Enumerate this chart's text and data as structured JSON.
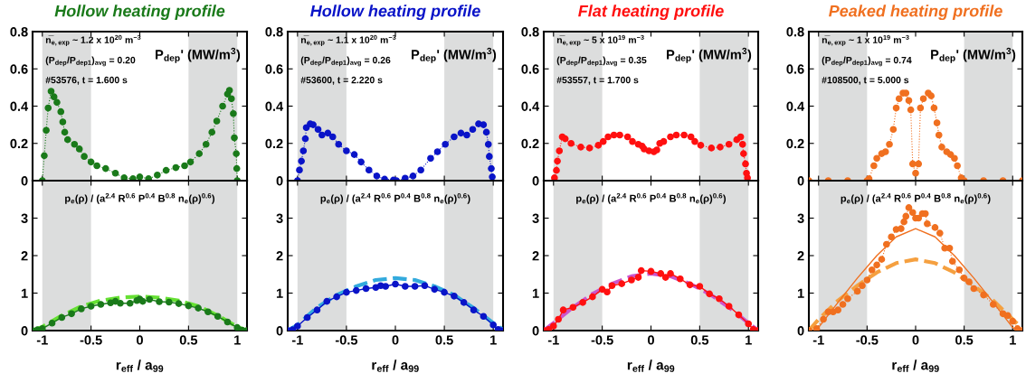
{
  "chart_data": [
    {
      "type": "line",
      "title": "Hollow heating profile",
      "annotations": [
        "n̅$_{e,exp}$ ~ 1.2 x 10$^{20}$ m$^{−3}$",
        "(P$_{dep}$/P$_{dep1}$)$_{avg}$ = 0.20",
        "#53576, t = 1.600 s",
        "P$_{dep}$' (MW/m$^{3}$)"
      ],
      "xlim": [
        -1.1,
        1.1
      ],
      "ylim": [
        0,
        0.8
      ],
      "xticks": [
        -1,
        -0.5,
        0,
        0.5,
        1
      ],
      "yticks": [
        0,
        0.2,
        0.4,
        0.6,
        0.8
      ],
      "tick_labels": "y",
      "grid": false,
      "legend": false,
      "bands": [
        {
          "axis": "x",
          "from": -1,
          "to": -0.5,
          "color": "#dcdddd"
        },
        {
          "axis": "x",
          "from": 0.5,
          "to": 1,
          "color": "#dcdddd"
        }
      ],
      "series": [
        {
          "color": "#1a7a1a",
          "marker": "circle",
          "line_style": "dotted",
          "x": [
            -1,
            -0.98,
            -0.96,
            -0.94,
            -0.91,
            -0.88,
            -0.85,
            -0.81,
            -0.79,
            -0.77,
            -0.74,
            -0.67,
            -0.62,
            -0.57,
            -0.5,
            -0.44,
            -0.35,
            -0.25,
            -0.16,
            -0.07,
            0,
            0.09,
            0.18,
            0.27,
            0.37,
            0.46,
            0.52,
            0.61,
            0.68,
            0.74,
            0.79,
            0.85,
            0.9,
            0.92,
            0.94,
            0.96,
            0.97,
            0.99,
            0.995,
            1
          ],
          "values": [
            0,
            0.134,
            0.27,
            0.39,
            0.48,
            0.45,
            0.42,
            0.37,
            0.315,
            0.26,
            0.22,
            0.195,
            0.17,
            0.13,
            0.1,
            0.08,
            0.065,
            0.04,
            0.015,
            0.01,
            0.02,
            0.01,
            0.03,
            0.055,
            0.07,
            0.08,
            0.1,
            0.145,
            0.195,
            0.26,
            0.32,
            0.4,
            0.465,
            0.485,
            0.44,
            0.36,
            0.23,
            0.145,
            0.065,
            0
          ]
        }
      ]
    },
    {
      "type": "line",
      "title": "Hollow heating profile",
      "annotations": [
        "n̅$_{e,exp}$ ~ 1.1 x 10$^{20}$ m$^{−3}$",
        "(P$_{dep}$/P$_{dep1}$)$_{avg}$ = 0.26",
        "#53600, t = 2.220 s",
        "P$_{dep}$' (MW/m$^{3}$)"
      ],
      "xlim": [
        -1.1,
        1.1
      ],
      "ylim": [
        0,
        0.8
      ],
      "xticks": [
        -1,
        -0.5,
        0,
        0.5,
        1
      ],
      "yticks": [
        0,
        0.2,
        0.4,
        0.6,
        0.8
      ],
      "tick_labels": "y",
      "grid": false,
      "legend": false,
      "bands": [
        {
          "axis": "x",
          "from": -1,
          "to": -0.5,
          "color": "#dcdddd"
        },
        {
          "axis": "x",
          "from": 0.5,
          "to": 1,
          "color": "#dcdddd"
        }
      ],
      "series": [
        {
          "color": "#0a14c8",
          "marker": "circle",
          "line_style": "dotted",
          "x": [
            -1,
            -0.98,
            -0.96,
            -0.94,
            -0.92,
            -0.91,
            -0.87,
            -0.84,
            -0.79,
            -0.75,
            -0.69,
            -0.64,
            -0.58,
            -0.5,
            -0.42,
            -0.35,
            -0.27,
            -0.19,
            -0.11,
            -0.02,
            0.01,
            0.1,
            0.18,
            0.26,
            0.36,
            0.43,
            0.51,
            0.6,
            0.67,
            0.73,
            0.79,
            0.85,
            0.9,
            0.93,
            0.95,
            0.96,
            0.98,
            0.99
          ],
          "values": [
            0,
            0.057,
            0.105,
            0.16,
            0.225,
            0.285,
            0.305,
            0.3,
            0.275,
            0.245,
            0.255,
            0.235,
            0.195,
            0.16,
            0.14,
            0.1,
            0.057,
            0.025,
            0.008,
            0.003,
            0,
            0.013,
            0.025,
            0.057,
            0.12,
            0.155,
            0.195,
            0.235,
            0.255,
            0.245,
            0.275,
            0.305,
            0.3,
            0.26,
            0.195,
            0.13,
            0.065,
            0.02
          ]
        }
      ]
    },
    {
      "type": "line",
      "title": "Flat heating profile",
      "annotations": [
        "n̅$_{e,exp}$ ~ 5 x 10$^{19}$ m$^{−3}$",
        "(P$_{dep}$/P$_{dep1}$)$_{avg}$ = 0.35",
        "#53557, t = 1.700 s",
        "P$_{dep}$' (MW/m$^{3}$)"
      ],
      "xlim": [
        -1.1,
        1.1
      ],
      "ylim": [
        0,
        0.8
      ],
      "xticks": [
        -1,
        -0.5,
        0,
        0.5,
        1
      ],
      "yticks": [
        0,
        0.2,
        0.4,
        0.6,
        0.8
      ],
      "tick_labels": "y",
      "grid": false,
      "legend": false,
      "bands": [
        {
          "axis": "x",
          "from": -1,
          "to": -0.5,
          "color": "#dcdddd"
        },
        {
          "axis": "x",
          "from": 0.5,
          "to": 1,
          "color": "#dcdddd"
        }
      ],
      "series": [
        {
          "color": "#ff1010",
          "marker": "circle",
          "line_style": "dotted",
          "x": [
            -0.99,
            -0.97,
            -0.96,
            -0.94,
            -0.91,
            -0.88,
            -0.82,
            -0.72,
            -0.63,
            -0.54,
            -0.49,
            -0.44,
            -0.38,
            -0.32,
            -0.24,
            -0.19,
            -0.13,
            -0.09,
            -0.07,
            -0.02,
            0.03,
            0.06,
            0.09,
            0.13,
            0.2,
            0.26,
            0.34,
            0.41,
            0.45,
            0.51,
            0.62,
            0.71,
            0.8,
            0.88,
            0.92,
            0.94,
            0.95,
            0.97,
            0.98,
            0.99
          ],
          "values": [
            0.015,
            0.055,
            0.105,
            0.16,
            0.235,
            0.225,
            0.2,
            0.18,
            0.175,
            0.19,
            0.21,
            0.235,
            0.245,
            0.245,
            0.235,
            0.21,
            0.195,
            0.185,
            0.17,
            0.16,
            0.155,
            0.165,
            0.2,
            0.21,
            0.235,
            0.245,
            0.245,
            0.235,
            0.21,
            0.19,
            0.175,
            0.18,
            0.195,
            0.22,
            0.235,
            0.195,
            0.145,
            0.09,
            0.04,
            0.015
          ]
        }
      ]
    },
    {
      "type": "line",
      "title": "Peaked heating profile",
      "annotations": [
        "n̅$_{e,exp}$ ~ 1 x 10$^{19}$ m$^{−3}$",
        "(P$_{dep}$/P$_{dep1}$)$_{avg}$ = 0.74",
        "#108500, t = 5.000 s",
        "P$_{dep}$' (MW/m$^{3}$)"
      ],
      "xlim": [
        -1.1,
        1.1
      ],
      "ylim": [
        0,
        0.8
      ],
      "xticks": [
        -1,
        -0.5,
        0,
        0.5,
        1
      ],
      "yticks": [
        0,
        0.2,
        0.4,
        0.6,
        0.8
      ],
      "tick_labels": "y",
      "grid": false,
      "legend": false,
      "bands": [
        {
          "axis": "x",
          "from": -1,
          "to": -0.5,
          "color": "#dcdddd"
        },
        {
          "axis": "x",
          "from": 0.5,
          "to": 1,
          "color": "#dcdddd"
        }
      ],
      "series": [
        {
          "color": "#f07020",
          "marker": "circle",
          "line_style": "dotted",
          "x": [
            -1.1,
            -0.9,
            -0.7,
            -0.5,
            -0.48,
            -0.43,
            -0.4,
            -0.35,
            -0.31,
            -0.27,
            -0.23,
            -0.2,
            -0.17,
            -0.13,
            -0.1,
            -0.07,
            -0.05,
            -0.03,
            0,
            0.03,
            0.05,
            0.08,
            0.13,
            0.16,
            0.19,
            0.22,
            0.24,
            0.27,
            0.32,
            0.36,
            0.4,
            0.43,
            0.47,
            0.5,
            0.7,
            0.9,
            1.1
          ],
          "values": [
            0,
            0,
            0,
            0,
            0.01,
            0.08,
            0.12,
            0.145,
            0.155,
            0.195,
            0.275,
            0.39,
            0.44,
            0.47,
            0.47,
            0.43,
            0.38,
            0.09,
            0.04,
            0.09,
            0.39,
            0.44,
            0.47,
            0.455,
            0.39,
            0.31,
            0.245,
            0.18,
            0.155,
            0.14,
            0.12,
            0.08,
            0.015,
            0,
            0,
            0,
            0
          ]
        }
      ]
    },
    {
      "type": "line",
      "xlabel": "r$_{eff}$ / a$_{99}$",
      "annotations": [
        "p$_{e}$(ρ) / (a$^{2.4}$ R$^{0.6}$ P$^{0.4}$ B$^{0.8}$ n$_{e}$(ρ)$^{0.6}$)"
      ],
      "xlim": [
        -1.1,
        1.1
      ],
      "ylim": [
        0,
        4
      ],
      "xticks": [
        -1,
        -0.5,
        0,
        0.5,
        1
      ],
      "yticks": [
        0,
        1,
        2,
        3
      ],
      "grid": false,
      "legend": false,
      "bands": [
        {
          "axis": "x",
          "from": -1,
          "to": -0.5,
          "color": "#dcdddd"
        },
        {
          "axis": "x",
          "from": 0.5,
          "to": 1,
          "color": "#dcdddd"
        }
      ],
      "series": [
        {
          "color": "#66e033",
          "marker": "none",
          "line_style": "dashed",
          "x": [
            -1.1,
            -1,
            -0.8,
            -0.6,
            -0.4,
            -0.2,
            0,
            0.2,
            0.4,
            0.6,
            0.8,
            1,
            1.1
          ],
          "values": [
            0,
            0.1,
            0.4,
            0.65,
            0.8,
            0.88,
            0.91,
            0.88,
            0.8,
            0.65,
            0.4,
            0.1,
            0
          ]
        },
        {
          "color": "#1a7a1a",
          "marker": "circle",
          "line_style": "solid",
          "x": [
            -1.1,
            -1.05,
            -1,
            -0.9,
            -0.8,
            -0.7,
            -0.6,
            -0.5,
            -0.4,
            -0.3,
            -0.25,
            -0.2,
            -0.1,
            -0.03,
            0,
            0.03,
            0.1,
            0.2,
            0.3,
            0.4,
            0.5,
            0.6,
            0.7,
            0.8,
            0.9,
            1,
            1.05,
            1.1
          ],
          "values": [
            0,
            0.02,
            0.05,
            0.2,
            0.35,
            0.45,
            0.58,
            0.65,
            0.7,
            0.74,
            0.78,
            0.73,
            0.73,
            0.8,
            0.84,
            0.78,
            0.83,
            0.77,
            0.76,
            0.72,
            0.66,
            0.6,
            0.5,
            0.38,
            0.23,
            0.08,
            0.01,
            0
          ]
        }
      ]
    },
    {
      "type": "line",
      "xlabel": "r$_{eff}$ / a$_{99}$",
      "annotations": [
        "p$_{e}$(ρ) / (a$^{2.4}$ R$^{0.6}$ P$^{0.4}$ B$^{0.8}$ n$_{e}$(ρ)$^{0.6}$)"
      ],
      "xlim": [
        -1.1,
        1.1
      ],
      "ylim": [
        0,
        4
      ],
      "xticks": [
        -1,
        -0.5,
        0,
        0.5,
        1
      ],
      "yticks": [
        0,
        1,
        2,
        3
      ],
      "grid": false,
      "legend": false,
      "bands": [
        {
          "axis": "x",
          "from": -1,
          "to": -0.5,
          "color": "#dcdddd"
        },
        {
          "axis": "x",
          "from": 0.5,
          "to": 1,
          "color": "#dcdddd"
        }
      ],
      "series": [
        {
          "color": "#33aadd",
          "marker": "none",
          "line_style": "dashed",
          "x": [
            -1.1,
            -1,
            -0.8,
            -0.6,
            -0.4,
            -0.2,
            0,
            0.2,
            0.4,
            0.6,
            0.8,
            1,
            1.1
          ],
          "values": [
            0,
            0.15,
            0.62,
            0.95,
            1.18,
            1.35,
            1.4,
            1.35,
            1.18,
            0.95,
            0.6,
            0.2,
            0.03
          ]
        },
        {
          "color": "#0a14c8",
          "marker": "circle",
          "line_style": "solid",
          "x": [
            -1.1,
            -1.05,
            -1,
            -0.9,
            -0.8,
            -0.7,
            -0.6,
            -0.5,
            -0.4,
            -0.3,
            -0.2,
            -0.15,
            -0.1,
            0,
            0.1,
            0.2,
            0.3,
            0.4,
            0.5,
            0.6,
            0.7,
            0.8,
            0.9,
            1,
            1.05,
            1.1
          ],
          "values": [
            0,
            0.02,
            0.12,
            0.35,
            0.55,
            0.78,
            0.9,
            1.02,
            1.07,
            1.12,
            1.15,
            1.2,
            1.18,
            1.24,
            1.18,
            1.18,
            1.2,
            1.1,
            1.02,
            0.92,
            0.75,
            0.55,
            0.38,
            0.15,
            0.03,
            0
          ]
        }
      ]
    },
    {
      "type": "line",
      "xlabel": "r$_{eff}$ / a$_{99}$",
      "annotations": [
        "p$_{e}$(ρ) / (a$^{2.4}$ R$^{0.6}$ P$^{0.4}$ B$^{0.8}$ n$_{e}$(ρ)$^{0.6}$)"
      ],
      "xlim": [
        -1.1,
        1.1
      ],
      "ylim": [
        0,
        4
      ],
      "xticks": [
        -1,
        -0.5,
        0,
        0.5,
        1
      ],
      "yticks": [
        0,
        1,
        2,
        3
      ],
      "grid": false,
      "legend": false,
      "bands": [
        {
          "axis": "x",
          "from": -1,
          "to": -0.5,
          "color": "#dcdddd"
        },
        {
          "axis": "x",
          "from": 0.5,
          "to": 1,
          "color": "#dcdddd"
        }
      ],
      "series": [
        {
          "color": "#cc55cc",
          "marker": "none",
          "line_style": "dashed",
          "x": [
            -1.1,
            -1,
            -0.8,
            -0.6,
            -0.4,
            -0.2,
            0,
            0.2,
            0.4,
            0.6,
            0.8,
            1,
            1.1
          ],
          "values": [
            0,
            0.2,
            0.62,
            0.98,
            1.25,
            1.45,
            1.52,
            1.45,
            1.25,
            0.98,
            0.62,
            0.2,
            0
          ]
        },
        {
          "color": "#ff1010",
          "marker": "circle",
          "line_style": "solid",
          "x": [
            -1.1,
            -1.05,
            -1,
            -0.95,
            -0.9,
            -0.8,
            -0.7,
            -0.6,
            -0.5,
            -0.45,
            -0.4,
            -0.3,
            -0.2,
            -0.13,
            -0.1,
            0,
            0.1,
            0.15,
            0.2,
            0.3,
            0.4,
            0.5,
            0.6,
            0.7,
            0.8,
            0.9,
            1,
            1.05,
            1.1
          ],
          "values": [
            0,
            0.03,
            0.12,
            0.3,
            0.55,
            0.62,
            0.75,
            0.9,
            1.1,
            1.03,
            1.2,
            1.25,
            1.35,
            1.42,
            1.6,
            1.58,
            1.52,
            1.42,
            1.52,
            1.38,
            1.22,
            1.18,
            0.98,
            0.85,
            0.65,
            0.42,
            0.18,
            0.03,
            0
          ]
        }
      ]
    },
    {
      "type": "line",
      "xlabel": "r$_{eff}$ / a$_{99}$",
      "annotations": [
        "p$_{e}$(ρ) / (a$^{2.4}$ R$^{0.6}$ P$^{0.4}$ B$^{0.8}$ n$_{e}$(ρ)$^{0.6}$)"
      ],
      "xlim": [
        -1.1,
        1.1
      ],
      "ylim": [
        0,
        4
      ],
      "xticks": [
        -1,
        -0.5,
        0,
        0.5,
        1
      ],
      "yticks": [
        0,
        1,
        2,
        3
      ],
      "grid": false,
      "legend": false,
      "bands": [
        {
          "axis": "x",
          "from": -1,
          "to": -0.5,
          "color": "#dcdddd"
        },
        {
          "axis": "x",
          "from": 0.5,
          "to": 1,
          "color": "#dcdddd"
        }
      ],
      "series": [
        {
          "color": "#f5a040",
          "marker": "none",
          "line_style": "dashed",
          "x": [
            -1.1,
            -1,
            -0.8,
            -0.6,
            -0.4,
            -0.2,
            0,
            0.2,
            0.4,
            0.6,
            0.8,
            1,
            1.1
          ],
          "values": [
            0,
            0.3,
            0.8,
            1.2,
            1.55,
            1.8,
            1.9,
            1.8,
            1.55,
            1.2,
            0.8,
            0.3,
            0.05
          ]
        },
        {
          "color": "#f07020",
          "marker": "none",
          "line_style": "solid",
          "x": [
            -1.05,
            -1,
            -0.8,
            -0.6,
            -0.4,
            -0.2,
            0,
            0.2,
            0.4,
            0.6,
            0.8,
            1,
            1.05
          ],
          "values": [
            0,
            0.08,
            0.75,
            1.4,
            2,
            2.5,
            2.72,
            2.5,
            2,
            1.4,
            0.75,
            0.08,
            0
          ]
        },
        {
          "color": "#f07020",
          "marker": "circle",
          "line_style": "dotted",
          "x": [
            -1.1,
            -1.02,
            -0.95,
            -0.9,
            -0.85,
            -0.8,
            -0.75,
            -0.7,
            -0.6,
            -0.55,
            -0.5,
            -0.45,
            -0.4,
            -0.35,
            -0.3,
            -0.25,
            -0.2,
            -0.15,
            -0.12,
            -0.1,
            -0.07,
            -0.03,
            0,
            0.03,
            0.07,
            0.1,
            0.12,
            0.2,
            0.25,
            0.3,
            0.35,
            0.38,
            0.45,
            0.5,
            0.55,
            0.6,
            0.7,
            0.8,
            0.9,
            0.95,
            1,
            1.05,
            1.1
          ],
          "values": [
            0,
            0.05,
            0.3,
            0.5,
            0.5,
            0.55,
            0.7,
            0.85,
            1.05,
            1.2,
            1.35,
            1.62,
            1.75,
            1.9,
            2.3,
            2.5,
            2.7,
            2.72,
            2.9,
            3.05,
            3.28,
            3.15,
            3,
            3,
            3.12,
            3.12,
            2.85,
            2.75,
            2.6,
            2.2,
            2.2,
            1.85,
            1.62,
            1.4,
            1.3,
            1.12,
            0.95,
            0.7,
            0.45,
            0.4,
            0.25,
            0.05,
            0
          ]
        }
      ]
    }
  ]
}
